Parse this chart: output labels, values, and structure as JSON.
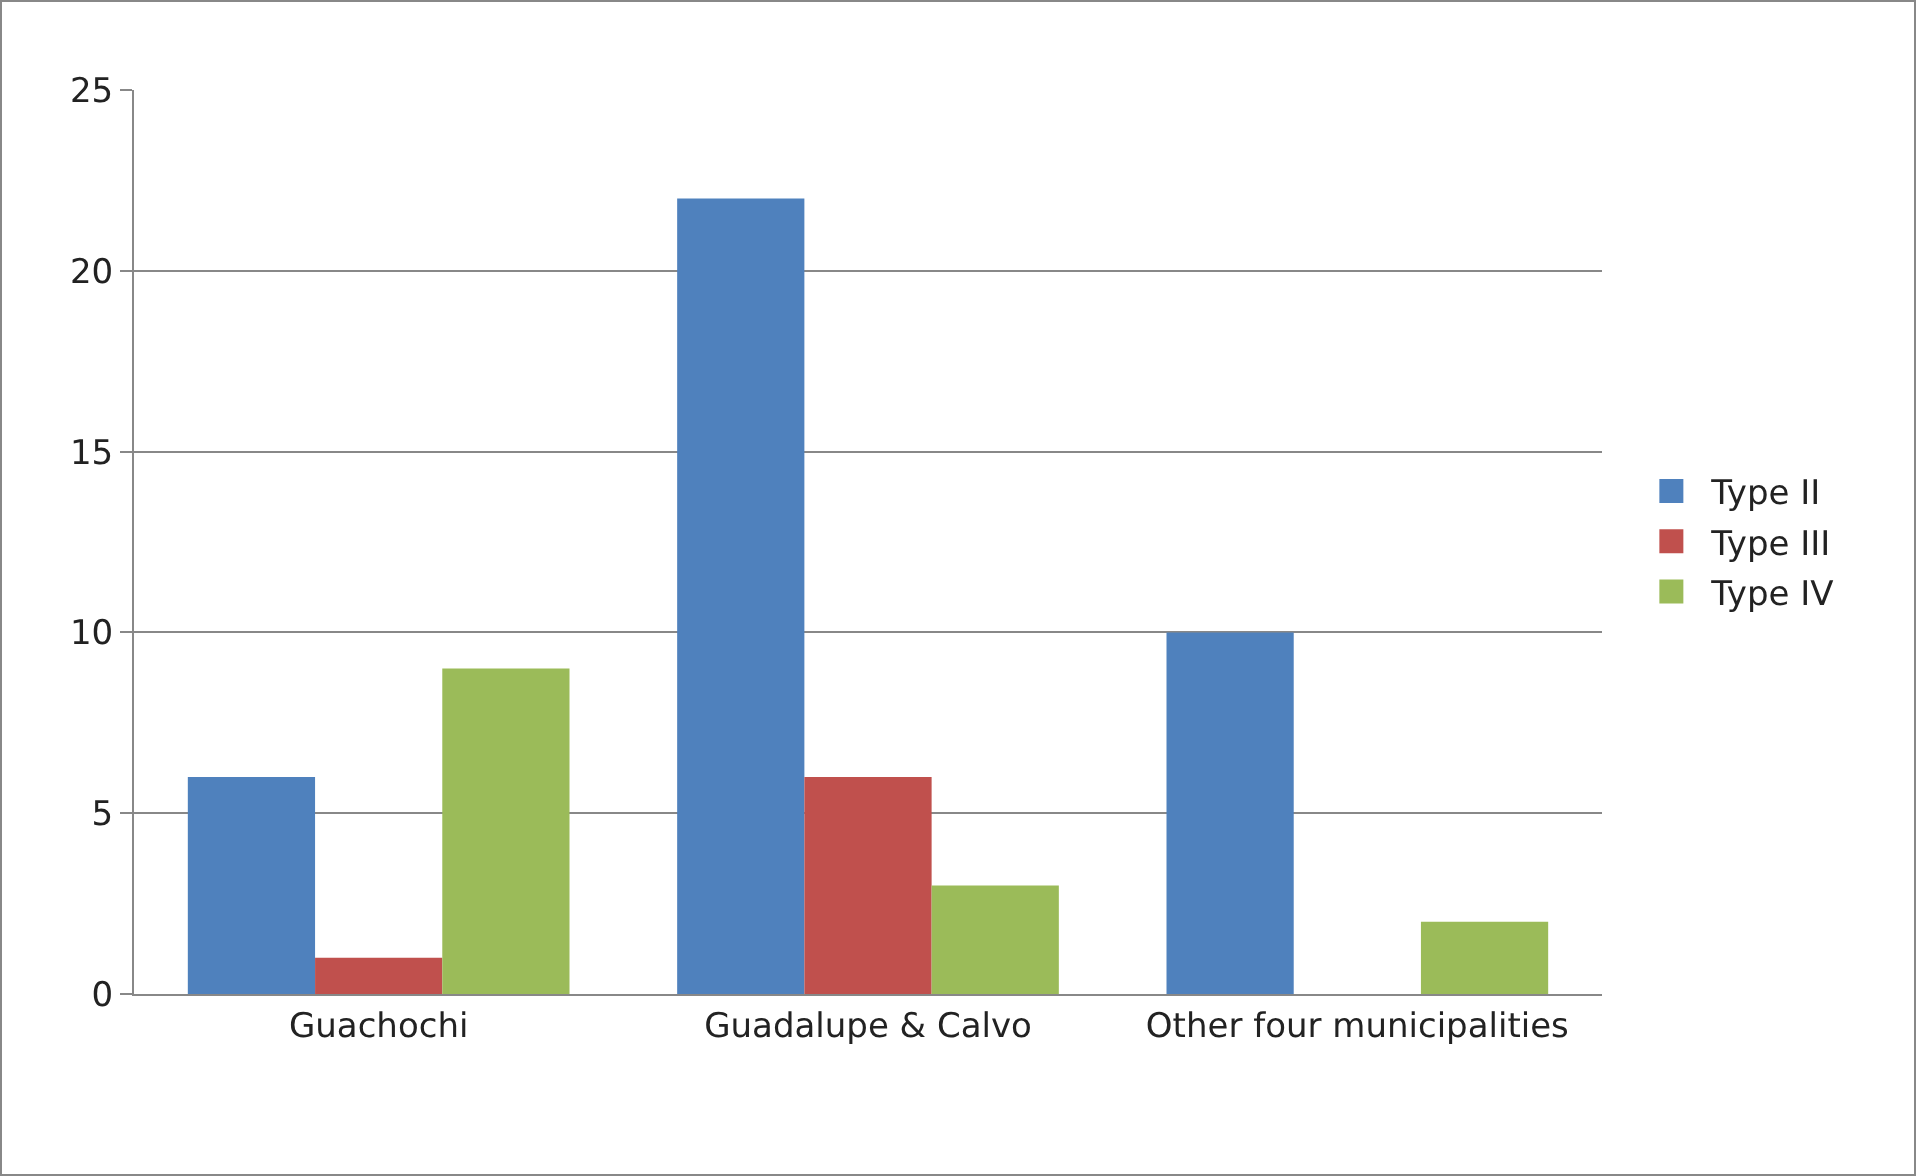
{
  "chart_data": {
    "type": "bar",
    "categories": [
      "Guachochi",
      "Guadalupe & Calvo",
      "Other four municipalities"
    ],
    "series": [
      {
        "name": "Type II",
        "color": "#4f81bd",
        "values": [
          6,
          22,
          10
        ]
      },
      {
        "name": "Type III",
        "color": "#c0504d",
        "values": [
          1,
          6,
          0
        ]
      },
      {
        "name": "Type IV",
        "color": "#9bbb59",
        "values": [
          9,
          3,
          2
        ]
      }
    ],
    "ylim": [
      0,
      25
    ],
    "yticks": [
      0,
      5,
      10,
      15,
      20,
      25
    ],
    "grid": "y",
    "legend": "right"
  }
}
